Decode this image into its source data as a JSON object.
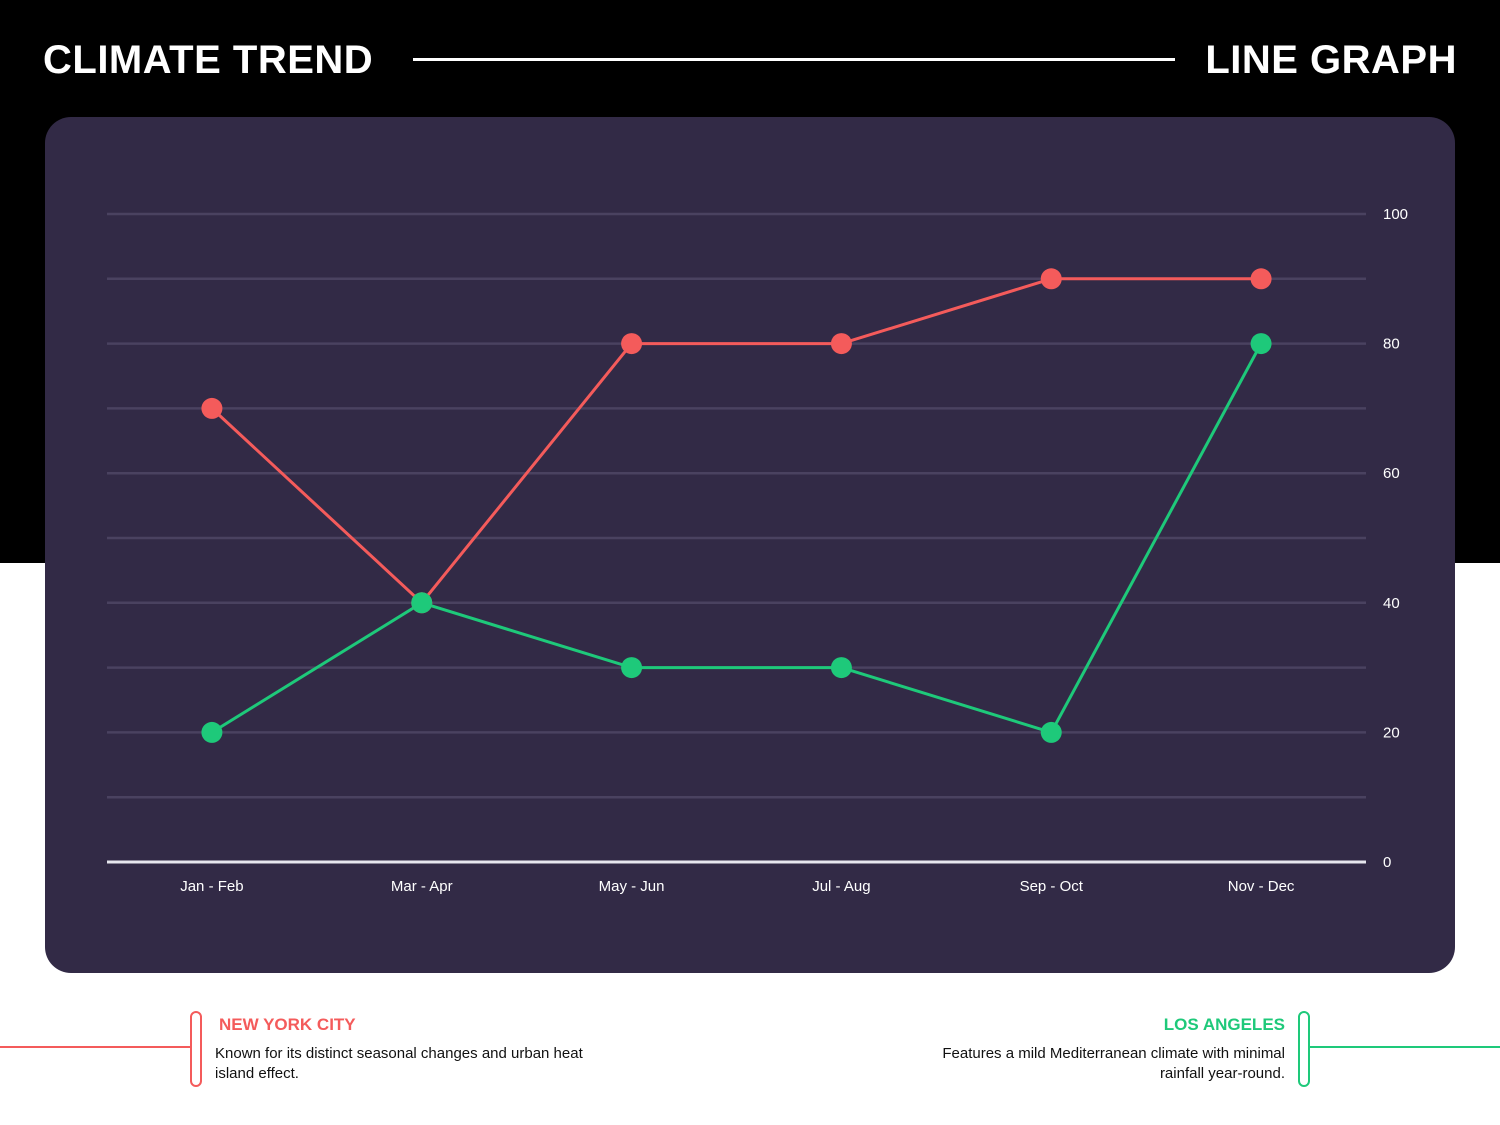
{
  "header": {
    "title_left": "CLIMATE TREND",
    "title_right": "LINE GRAPH"
  },
  "colors": {
    "background_top": "#000000",
    "card": "#322a46",
    "grid": "#4a4260",
    "axis": "#e6e6ee",
    "nyc": "#f45b5b",
    "la": "#1ec97a"
  },
  "chart_data": {
    "type": "line",
    "categories": [
      "Jan - Feb",
      "Mar - Apr",
      "May - Jun",
      "Jul - Aug",
      "Sep - Oct",
      "Nov - Dec"
    ],
    "series": [
      {
        "name": "NEW YORK CITY",
        "color": "#f45b5b",
        "values": [
          70,
          40,
          80,
          80,
          90,
          90
        ]
      },
      {
        "name": "LOS ANGELES",
        "color": "#1ec97a",
        "values": [
          20,
          40,
          30,
          30,
          20,
          80
        ]
      }
    ],
    "y_ticks": [
      0,
      20,
      40,
      60,
      80,
      100
    ],
    "ylim": [
      0,
      100
    ],
    "y_axis_side": "right",
    "grid": true,
    "title": "",
    "xlabel": "",
    "ylabel": ""
  },
  "legend": {
    "nyc": {
      "title": "NEW YORK CITY",
      "description": "Known for its distinct seasonal changes and urban heat island effect."
    },
    "la": {
      "title": "LOS ANGELES",
      "description": "Features a mild Mediterranean climate with minimal rainfall year-round."
    }
  }
}
